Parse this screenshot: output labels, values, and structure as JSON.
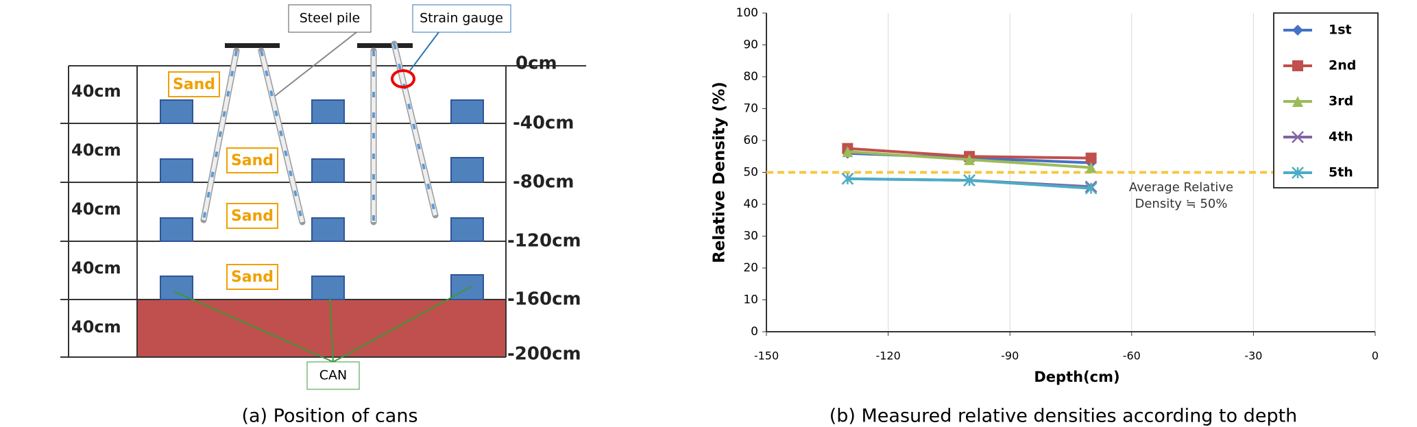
{
  "diagram": {
    "layer_thickness": [
      "40cm",
      "40cm",
      "40cm",
      "40cm",
      "40cm"
    ],
    "depth_labels": [
      "0cm",
      "-40cm",
      "-80cm",
      "-120cm",
      "-160cm",
      "-200cm"
    ],
    "sand_labels": [
      "Sand",
      "Sand",
      "Sand",
      "Sand"
    ],
    "steel_pile_label": "Steel pile",
    "strain_gauge_label": "Strain gauge",
    "can_label": "CAN"
  },
  "captions": [
    "(a) Position of cans",
    "(b) Measured relative densities according to depth"
  ],
  "chart_data": {
    "type": "line",
    "xlabel": "Depth(cm)",
    "ylabel": "Relative Density (%)",
    "x": [
      -130,
      -100,
      -70
    ],
    "series": [
      {
        "name": "1st",
        "color": "#4472c4",
        "marker": "diamond",
        "values": [
          56,
          54.5,
          53
        ]
      },
      {
        "name": "2nd",
        "color": "#c0504d",
        "marker": "square",
        "values": [
          57.5,
          55,
          54.5
        ]
      },
      {
        "name": "3rd",
        "color": "#9bbb59",
        "marker": "triangle",
        "values": [
          56.5,
          54,
          51.5
        ]
      },
      {
        "name": "4th",
        "color": "#8064a2",
        "marker": "x",
        "values": [
          48,
          47.5,
          45.5
        ]
      },
      {
        "name": "5th",
        "color": "#4bacc6",
        "marker": "star",
        "values": [
          48,
          47.5,
          45
        ]
      }
    ],
    "xlim": [
      -150,
      0
    ],
    "xticks": [
      -150,
      -120,
      -90,
      -60,
      -30,
      0
    ],
    "ylim": [
      0,
      100
    ],
    "yticks": [
      0,
      10,
      20,
      30,
      40,
      50,
      60,
      70,
      80,
      90,
      100
    ],
    "grid": true,
    "legend": "upper right",
    "reference_line": {
      "value": 50,
      "color": "#f5c842"
    },
    "annotation": [
      "Average Relative",
      "Density ≒ 50%"
    ]
  }
}
